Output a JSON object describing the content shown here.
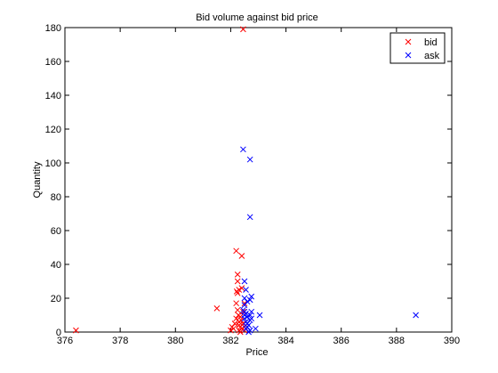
{
  "chart_data": {
    "type": "scatter",
    "title": "Bid volume against bid price",
    "xlabel": "Price",
    "ylabel": "Quantity",
    "xlim": [
      376,
      390
    ],
    "ylim": [
      0,
      180
    ],
    "xticks": [
      376,
      378,
      380,
      382,
      384,
      386,
      388,
      390
    ],
    "yticks": [
      0,
      20,
      40,
      60,
      80,
      100,
      120,
      140,
      160,
      180
    ],
    "grid": false,
    "legend_position": "top-right",
    "marker": "x",
    "series": [
      {
        "name": "bid",
        "color": "#ff0000",
        "points": [
          [
            376.4,
            1
          ],
          [
            381.5,
            14
          ],
          [
            382.0,
            1
          ],
          [
            382.05,
            3
          ],
          [
            382.1,
            2
          ],
          [
            382.15,
            5
          ],
          [
            382.2,
            48
          ],
          [
            382.2,
            8
          ],
          [
            382.2,
            17
          ],
          [
            382.22,
            24
          ],
          [
            382.25,
            34
          ],
          [
            382.25,
            13
          ],
          [
            382.25,
            30
          ],
          [
            382.25,
            23
          ],
          [
            382.28,
            10
          ],
          [
            382.3,
            25
          ],
          [
            382.3,
            6
          ],
          [
            382.3,
            4
          ],
          [
            382.3,
            1
          ],
          [
            382.35,
            3
          ],
          [
            382.35,
            9
          ],
          [
            382.35,
            0
          ],
          [
            382.38,
            7
          ],
          [
            382.4,
            45
          ],
          [
            382.4,
            26
          ],
          [
            382.4,
            2
          ],
          [
            382.45,
            5
          ],
          [
            382.45,
            12
          ],
          [
            382.5,
            1
          ],
          [
            382.5,
            3
          ],
          [
            382.5,
            17
          ],
          [
            382.45,
            179
          ]
        ]
      },
      {
        "name": "ask",
        "color": "#0000ff",
        "points": [
          [
            382.45,
            108
          ],
          [
            382.7,
            102
          ],
          [
            382.7,
            68
          ],
          [
            382.5,
            30
          ],
          [
            382.55,
            25
          ],
          [
            382.5,
            20
          ],
          [
            382.6,
            18
          ],
          [
            382.5,
            16
          ],
          [
            382.45,
            13
          ],
          [
            382.5,
            12
          ],
          [
            382.55,
            11
          ],
          [
            382.5,
            10
          ],
          [
            382.6,
            9
          ],
          [
            382.5,
            8
          ],
          [
            382.55,
            6
          ],
          [
            382.6,
            5
          ],
          [
            382.65,
            4
          ],
          [
            382.6,
            3
          ],
          [
            382.55,
            2
          ],
          [
            382.7,
            1
          ],
          [
            382.65,
            0
          ],
          [
            382.75,
            21
          ],
          [
            382.7,
            19
          ],
          [
            382.75,
            12
          ],
          [
            382.7,
            10
          ],
          [
            382.75,
            8
          ],
          [
            382.7,
            7
          ],
          [
            382.9,
            2
          ],
          [
            383.05,
            10
          ],
          [
            388.7,
            10
          ]
        ]
      }
    ]
  }
}
